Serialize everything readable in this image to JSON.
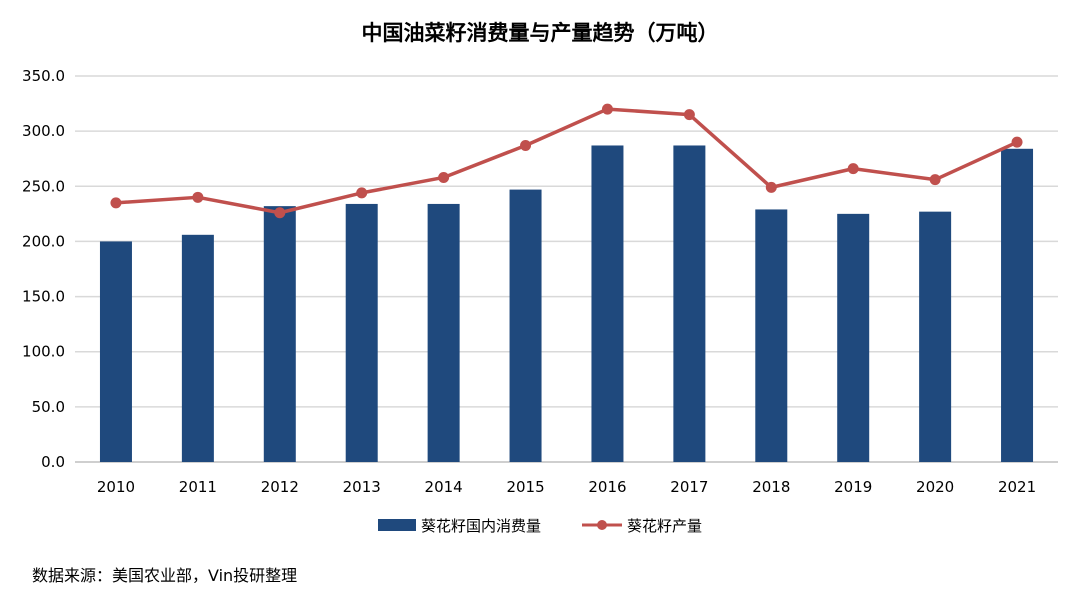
{
  "chart_data": {
    "type": "bar+line",
    "title": "中国油菜籽消费量与产量趋势（万吨）",
    "categories": [
      "2010",
      "2011",
      "2012",
      "2013",
      "2014",
      "2015",
      "2016",
      "2017",
      "2018",
      "2019",
      "2020",
      "2021"
    ],
    "series": [
      {
        "name": "葵花籽国内消费量",
        "type": "bar",
        "color": "#1F497D",
        "values": [
          200,
          206,
          232,
          234,
          234,
          247,
          287,
          287,
          229,
          225,
          227,
          284
        ]
      },
      {
        "name": "葵花籽产量",
        "type": "line",
        "color": "#C0504D",
        "values": [
          235,
          240,
          226,
          244,
          258,
          287,
          320,
          315,
          249,
          266,
          256,
          290
        ]
      }
    ],
    "yticks": [
      "0.0",
      "50.0",
      "100.0",
      "150.0",
      "200.0",
      "250.0",
      "300.0",
      "350.0"
    ],
    "ylim": [
      0,
      350
    ],
    "grid": true,
    "legend_position": "bottom"
  },
  "source": "数据来源：美国农业部，Vin投研整理"
}
